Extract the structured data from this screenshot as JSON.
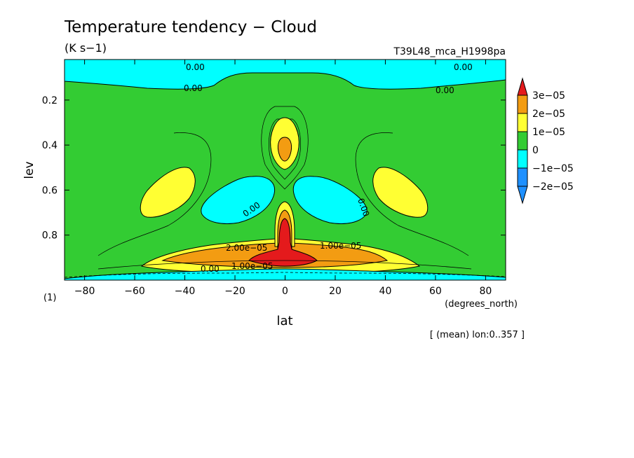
{
  "chart_data": {
    "type": "heatmap",
    "title": "Temperature tendency − Cloud",
    "units": "(K s−1)",
    "experiment": "T39L48_mca_H1998pa",
    "xlabel": "lat",
    "x_units": "(degrees_north)",
    "ylabel": "lev",
    "y_units": "(1)",
    "footnote": "[ (mean) lon:0..357 ]",
    "xlim": [
      -88,
      88
    ],
    "ylim": [
      1.0,
      0.02
    ],
    "y_inverted": true,
    "x_ticks": [
      -80,
      -60,
      -40,
      -20,
      0,
      20,
      40,
      60,
      80
    ],
    "x_tick_labels": [
      "−80",
      "−60",
      "−40",
      "−20",
      "0",
      "20",
      "40",
      "60",
      "80"
    ],
    "y_ticks": [
      0.2,
      0.4,
      0.6,
      0.8
    ],
    "y_tick_labels": [
      "0.2",
      "0.4",
      "0.6",
      "0.8"
    ],
    "colorbar": {
      "levels": [
        "3e−05",
        "2e−05",
        "1e−05",
        "0",
        "−1e−05",
        "−2e−05"
      ],
      "colors": [
        "#e41a1c",
        "#f39c12",
        "#ffff33",
        "#33cc33",
        "#00ffff",
        "#1e90ff",
        "#1e90ff"
      ]
    },
    "contour_labels": [
      "0.00",
      "0.00",
      "0.00",
      "0.00",
      "0.00",
      "0.00",
      "2.00e−05",
      "1.00e−05",
      "0.00",
      "1.00e−05"
    ],
    "features": [
      {
        "kind": "negative",
        "lat": [
          -88,
          88
        ],
        "lev": [
          0.02,
          0.1
        ]
      },
      {
        "kind": "positive",
        "lat": [
          -4,
          4
        ],
        "lev": [
          0.27,
          0.45
        ],
        "peak": 2e-05
      },
      {
        "kind": "positive",
        "lat": [
          -58,
          -35
        ],
        "lev": [
          0.47,
          0.74
        ],
        "peak": 1e-05
      },
      {
        "kind": "positive",
        "lat": [
          35,
          58
        ],
        "lev": [
          0.47,
          0.74
        ],
        "peak": 1e-05
      },
      {
        "kind": "negative",
        "lat": [
          -32,
          -4
        ],
        "lev": [
          0.53,
          0.77
        ],
        "peak": -1e-05
      },
      {
        "kind": "negative",
        "lat": [
          4,
          32
        ],
        "lev": [
          0.53,
          0.77
        ],
        "peak": -1e-05
      },
      {
        "kind": "positive",
        "lat": [
          -60,
          42
        ],
        "lev": [
          0.63,
          0.98
        ],
        "peak": 3e-05
      },
      {
        "kind": "negative",
        "lat": [
          -88,
          88
        ],
        "lev": [
          0.98,
          1.0
        ]
      }
    ]
  }
}
